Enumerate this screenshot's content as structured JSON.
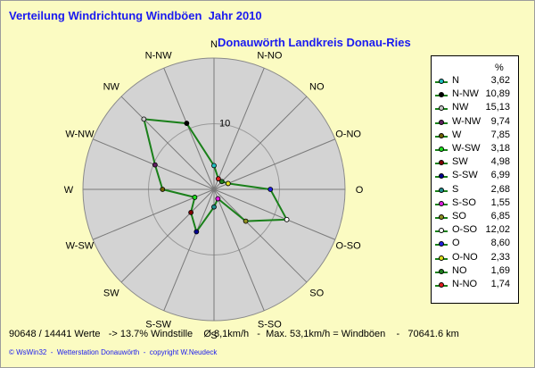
{
  "title": "Verteilung Windrichtung Windböen  Jahr 2010",
  "subtitle": "Donauwörth Landkreis Donau-Ries",
  "legend_unit": "%",
  "footer": {
    "stats": "90648 / 14441 Werte   -> 13.7% Windstille    Ø 8,1km/h   -  Max. 53,1km/h = Windböen    -   70641.6 km",
    "credit": "© WsWin32  -  Wetterstation Donauwörth  -  copyright W.Neudeck"
  },
  "chart_data": {
    "type": "radar",
    "title": "Verteilung Windrichtung Windböen  Jahr 2010",
    "subtitle": "Donauwörth Landkreis Donau-Ries",
    "unit": "%",
    "rlim": [
      0,
      20
    ],
    "ring_label": "10",
    "series_color": "#1a801a",
    "grid": true,
    "legend_position": "right",
    "points": [
      {
        "direction": "N",
        "value": 3.62,
        "label": "3,62",
        "color": "#20c0c0"
      },
      {
        "direction": "N-NW",
        "value": 10.89,
        "label": "10,89",
        "color": "#000000"
      },
      {
        "direction": "NW",
        "value": 15.13,
        "label": "15,13",
        "color": "#c8c8c8"
      },
      {
        "direction": "W-NW",
        "value": 9.74,
        "label": "9,74",
        "color": "#602060"
      },
      {
        "direction": "W",
        "value": 7.85,
        "label": "7,85",
        "color": "#706000"
      },
      {
        "direction": "W-SW",
        "value": 3.18,
        "label": "3,18",
        "color": "#20e020"
      },
      {
        "direction": "SW",
        "value": 4.98,
        "label": "4,98",
        "color": "#800000"
      },
      {
        "direction": "S-SW",
        "value": 6.99,
        "label": "6,99",
        "color": "#000090"
      },
      {
        "direction": "S",
        "value": 2.68,
        "label": "2,68",
        "color": "#209090"
      },
      {
        "direction": "S-SO",
        "value": 1.55,
        "label": "1,55",
        "color": "#e020e0"
      },
      {
        "direction": "SO",
        "value": 6.85,
        "label": "6,85",
        "color": "#909020"
      },
      {
        "direction": "O-SO",
        "value": 12.02,
        "label": "12,02",
        "color": "#ffffff"
      },
      {
        "direction": "O",
        "value": 8.6,
        "label": "8,60",
        "color": "#2020e0"
      },
      {
        "direction": "O-NO",
        "value": 2.33,
        "label": "2,33",
        "color": "#e0e020"
      },
      {
        "direction": "NO",
        "value": 1.69,
        "label": "1,69",
        "color": "#208020"
      },
      {
        "direction": "N-NO",
        "value": 1.74,
        "label": "1,74",
        "color": "#e02020"
      }
    ]
  }
}
